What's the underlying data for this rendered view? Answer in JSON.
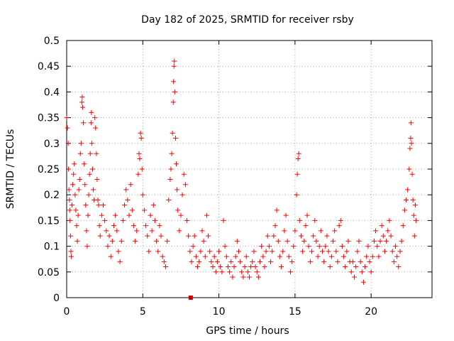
{
  "chart_data": {
    "type": "scatter",
    "title": "Day 182 of 2025, SRMTID for receiver rsby",
    "xlabel": "GPS time / hours",
    "ylabel": "SRMTID / TECUs",
    "xlim": [
      0,
      24
    ],
    "ylim": [
      0,
      0.5
    ],
    "xticks": [
      "0",
      "5",
      "10",
      "15",
      "20"
    ],
    "xtick_values": [
      0,
      5,
      10,
      15,
      20
    ],
    "yticks": [
      "0",
      "0.05",
      "0.1",
      "0.15",
      "0.2",
      "0.25",
      "0.3",
      "0.35",
      "0.4",
      "0.45",
      "0.5"
    ],
    "ytick_values": [
      0,
      0.05,
      0.1,
      0.15,
      0.2,
      0.25,
      0.3,
      0.35,
      0.4,
      0.45,
      0.5
    ],
    "grid": true,
    "marker": "+",
    "color": "#ff0000",
    "data_gap_marker": {
      "x": 8.15,
      "y": 0
    },
    "series": [
      {
        "name": "SRMTID",
        "points": [
          [
            0.0,
            0.35
          ],
          [
            0.05,
            0.33
          ],
          [
            0.1,
            0.3
          ],
          [
            0.12,
            0.25
          ],
          [
            0.15,
            0.21
          ],
          [
            0.18,
            0.19
          ],
          [
            0.2,
            0.17
          ],
          [
            0.22,
            0.15
          ],
          [
            0.25,
            0.12
          ],
          [
            0.28,
            0.09
          ],
          [
            0.3,
            0.08
          ],
          [
            0.35,
            0.18
          ],
          [
            0.4,
            0.22
          ],
          [
            0.45,
            0.24
          ],
          [
            0.5,
            0.26
          ],
          [
            0.55,
            0.2
          ],
          [
            0.6,
            0.17
          ],
          [
            0.65,
            0.14
          ],
          [
            0.7,
            0.11
          ],
          [
            0.75,
            0.16
          ],
          [
            0.8,
            0.21
          ],
          [
            0.85,
            0.23
          ],
          [
            0.9,
            0.28
          ],
          [
            0.95,
            0.3
          ],
          [
            1.0,
            0.38
          ],
          [
            1.02,
            0.39
          ],
          [
            1.05,
            0.37
          ],
          [
            1.1,
            0.34
          ],
          [
            1.15,
            0.26
          ],
          [
            1.2,
            0.22
          ],
          [
            1.25,
            0.18
          ],
          [
            1.3,
            0.13
          ],
          [
            1.35,
            0.1
          ],
          [
            1.4,
            0.16
          ],
          [
            1.45,
            0.2
          ],
          [
            1.5,
            0.24
          ],
          [
            1.55,
            0.28
          ],
          [
            1.6,
            0.34
          ],
          [
            1.62,
            0.36
          ],
          [
            1.65,
            0.3
          ],
          [
            1.7,
            0.25
          ],
          [
            1.75,
            0.21
          ],
          [
            1.8,
            0.19
          ],
          [
            1.85,
            0.35
          ],
          [
            1.9,
            0.33
          ],
          [
            1.95,
            0.28
          ],
          [
            2.0,
            0.23
          ],
          [
            2.05,
            0.19
          ],
          [
            2.1,
            0.18
          ],
          [
            2.15,
            0.14
          ],
          [
            2.2,
            0.12
          ],
          [
            2.3,
            0.16
          ],
          [
            2.4,
            0.18
          ],
          [
            2.5,
            0.15
          ],
          [
            2.6,
            0.13
          ],
          [
            2.7,
            0.1
          ],
          [
            2.8,
            0.12
          ],
          [
            2.9,
            0.08
          ],
          [
            3.0,
            0.11
          ],
          [
            3.1,
            0.14
          ],
          [
            3.2,
            0.16
          ],
          [
            3.3,
            0.13
          ],
          [
            3.4,
            0.09
          ],
          [
            3.5,
            0.07
          ],
          [
            3.6,
            0.11
          ],
          [
            3.7,
            0.15
          ],
          [
            3.8,
            0.18
          ],
          [
            3.9,
            0.21
          ],
          [
            4.0,
            0.19
          ],
          [
            4.1,
            0.16
          ],
          [
            4.2,
            0.22
          ],
          [
            4.3,
            0.17
          ],
          [
            4.4,
            0.14
          ],
          [
            4.5,
            0.11
          ],
          [
            4.6,
            0.13
          ],
          [
            4.7,
            0.24
          ],
          [
            4.75,
            0.28
          ],
          [
            4.8,
            0.27
          ],
          [
            4.85,
            0.32
          ],
          [
            4.9,
            0.31
          ],
          [
            4.95,
            0.25
          ],
          [
            5.0,
            0.2
          ],
          [
            5.1,
            0.17
          ],
          [
            5.2,
            0.14
          ],
          [
            5.3,
            0.12
          ],
          [
            5.4,
            0.09
          ],
          [
            5.5,
            0.16
          ],
          [
            5.6,
            0.13
          ],
          [
            5.7,
            0.18
          ],
          [
            5.8,
            0.15
          ],
          [
            5.9,
            0.11
          ],
          [
            6.0,
            0.09
          ],
          [
            6.1,
            0.14
          ],
          [
            6.2,
            0.12
          ],
          [
            6.3,
            0.08
          ],
          [
            6.4,
            0.07
          ],
          [
            6.5,
            0.06
          ],
          [
            6.6,
            0.11
          ],
          [
            6.7,
            0.19
          ],
          [
            6.8,
            0.23
          ],
          [
            6.85,
            0.25
          ],
          [
            6.9,
            0.28
          ],
          [
            6.95,
            0.32
          ],
          [
            7.0,
            0.38
          ],
          [
            7.02,
            0.42
          ],
          [
            7.05,
            0.45
          ],
          [
            7.07,
            0.46
          ],
          [
            7.1,
            0.4
          ],
          [
            7.15,
            0.31
          ],
          [
            7.2,
            0.26
          ],
          [
            7.25,
            0.21
          ],
          [
            7.3,
            0.17
          ],
          [
            7.4,
            0.13
          ],
          [
            7.5,
            0.16
          ],
          [
            7.6,
            0.2
          ],
          [
            7.7,
            0.24
          ],
          [
            7.8,
            0.22
          ],
          [
            7.9,
            0.15
          ],
          [
            8.0,
            0.12
          ],
          [
            8.1,
            0.09
          ],
          [
            8.2,
            0.07
          ],
          [
            8.3,
            0.1
          ],
          [
            8.4,
            0.12
          ],
          [
            8.5,
            0.08
          ],
          [
            8.6,
            0.06
          ],
          [
            8.7,
            0.07
          ],
          [
            8.8,
            0.09
          ],
          [
            8.9,
            0.13
          ],
          [
            9.0,
            0.11
          ],
          [
            9.1,
            0.08
          ],
          [
            9.2,
            0.16
          ],
          [
            9.3,
            0.12
          ],
          [
            9.4,
            0.09
          ],
          [
            9.5,
            0.07
          ],
          [
            9.6,
            0.06
          ],
          [
            9.7,
            0.08
          ],
          [
            9.8,
            0.05
          ],
          [
            9.9,
            0.07
          ],
          [
            10.0,
            0.09
          ],
          [
            10.1,
            0.06
          ],
          [
            10.2,
            0.05
          ],
          [
            10.3,
            0.15
          ],
          [
            10.4,
            0.1
          ],
          [
            10.5,
            0.08
          ],
          [
            10.6,
            0.06
          ],
          [
            10.7,
            0.05
          ],
          [
            10.8,
            0.07
          ],
          [
            10.9,
            0.04
          ],
          [
            11.0,
            0.06
          ],
          [
            11.1,
            0.08
          ],
          [
            11.2,
            0.11
          ],
          [
            11.3,
            0.09
          ],
          [
            11.4,
            0.07
          ],
          [
            11.5,
            0.05
          ],
          [
            11.6,
            0.04
          ],
          [
            11.7,
            0.06
          ],
          [
            11.8,
            0.08
          ],
          [
            11.9,
            0.05
          ],
          [
            12.0,
            0.04
          ],
          [
            12.1,
            0.06
          ],
          [
            12.2,
            0.07
          ],
          [
            12.3,
            0.09
          ],
          [
            12.4,
            0.06
          ],
          [
            12.5,
            0.05
          ],
          [
            12.6,
            0.04
          ],
          [
            12.7,
            0.07
          ],
          [
            12.8,
            0.1
          ],
          [
            12.9,
            0.08
          ],
          [
            13.0,
            0.06
          ],
          [
            13.1,
            0.09
          ],
          [
            13.2,
            0.12
          ],
          [
            13.3,
            0.1
          ],
          [
            13.4,
            0.07
          ],
          [
            13.5,
            0.09
          ],
          [
            13.6,
            0.12
          ],
          [
            13.7,
            0.14
          ],
          [
            13.8,
            0.17
          ],
          [
            13.9,
            0.11
          ],
          [
            14.0,
            0.08
          ],
          [
            14.1,
            0.06
          ],
          [
            14.2,
            0.09
          ],
          [
            14.3,
            0.13
          ],
          [
            14.4,
            0.16
          ],
          [
            14.5,
            0.11
          ],
          [
            14.6,
            0.08
          ],
          [
            14.7,
            0.05
          ],
          [
            14.8,
            0.07
          ],
          [
            14.9,
            0.1
          ],
          [
            15.0,
            0.13
          ],
          [
            15.1,
            0.2
          ],
          [
            15.15,
            0.24
          ],
          [
            15.2,
            0.27
          ],
          [
            15.25,
            0.28
          ],
          [
            15.3,
            0.15
          ],
          [
            15.4,
            0.12
          ],
          [
            15.5,
            0.09
          ],
          [
            15.6,
            0.11
          ],
          [
            15.7,
            0.14
          ],
          [
            15.8,
            0.16
          ],
          [
            15.9,
            0.1
          ],
          [
            16.0,
            0.07
          ],
          [
            16.1,
            0.09
          ],
          [
            16.2,
            0.12
          ],
          [
            16.3,
            0.15
          ],
          [
            16.4,
            0.11
          ],
          [
            16.5,
            0.08
          ],
          [
            16.6,
            0.1
          ],
          [
            16.7,
            0.13
          ],
          [
            16.8,
            0.09
          ],
          [
            16.9,
            0.07
          ],
          [
            17.0,
            0.1
          ],
          [
            17.1,
            0.12
          ],
          [
            17.2,
            0.09
          ],
          [
            17.3,
            0.06
          ],
          [
            17.4,
            0.08
          ],
          [
            17.5,
            0.11
          ],
          [
            17.6,
            0.13
          ],
          [
            17.7,
            0.09
          ],
          [
            17.8,
            0.07
          ],
          [
            17.9,
            0.14
          ],
          [
            18.0,
            0.15
          ],
          [
            18.1,
            0.1
          ],
          [
            18.2,
            0.08
          ],
          [
            18.3,
            0.06
          ],
          [
            18.4,
            0.09
          ],
          [
            18.5,
            0.11
          ],
          [
            18.6,
            0.07
          ],
          [
            18.7,
            0.05
          ],
          [
            18.8,
            0.07
          ],
          [
            18.9,
            0.04
          ],
          [
            19.0,
            0.06
          ],
          [
            19.1,
            0.09
          ],
          [
            19.2,
            0.11
          ],
          [
            19.3,
            0.07
          ],
          [
            19.4,
            0.05
          ],
          [
            19.5,
            0.03
          ],
          [
            19.6,
            0.06
          ],
          [
            19.7,
            0.08
          ],
          [
            19.8,
            0.1
          ],
          [
            19.9,
            0.07
          ],
          [
            20.0,
            0.05
          ],
          [
            20.1,
            0.08
          ],
          [
            20.2,
            0.11
          ],
          [
            20.3,
            0.13
          ],
          [
            20.4,
            0.1
          ],
          [
            20.5,
            0.08
          ],
          [
            20.6,
            0.11
          ],
          [
            20.7,
            0.14
          ],
          [
            20.8,
            0.12
          ],
          [
            20.9,
            0.09
          ],
          [
            21.0,
            0.11
          ],
          [
            21.1,
            0.13
          ],
          [
            21.2,
            0.15
          ],
          [
            21.3,
            0.12
          ],
          [
            21.4,
            0.09
          ],
          [
            21.5,
            0.07
          ],
          [
            21.6,
            0.1
          ],
          [
            21.7,
            0.08
          ],
          [
            21.8,
            0.06
          ],
          [
            21.9,
            0.09
          ],
          [
            22.0,
            0.11
          ],
          [
            22.1,
            0.14
          ],
          [
            22.2,
            0.17
          ],
          [
            22.3,
            0.19
          ],
          [
            22.4,
            0.21
          ],
          [
            22.5,
            0.25
          ],
          [
            22.55,
            0.29
          ],
          [
            22.6,
            0.31
          ],
          [
            22.62,
            0.34
          ],
          [
            22.65,
            0.3
          ],
          [
            22.7,
            0.24
          ],
          [
            22.75,
            0.19
          ],
          [
            22.8,
            0.16
          ],
          [
            22.85,
            0.12
          ],
          [
            22.9,
            0.18
          ],
          [
            22.95,
            0.15
          ]
        ]
      }
    ]
  }
}
